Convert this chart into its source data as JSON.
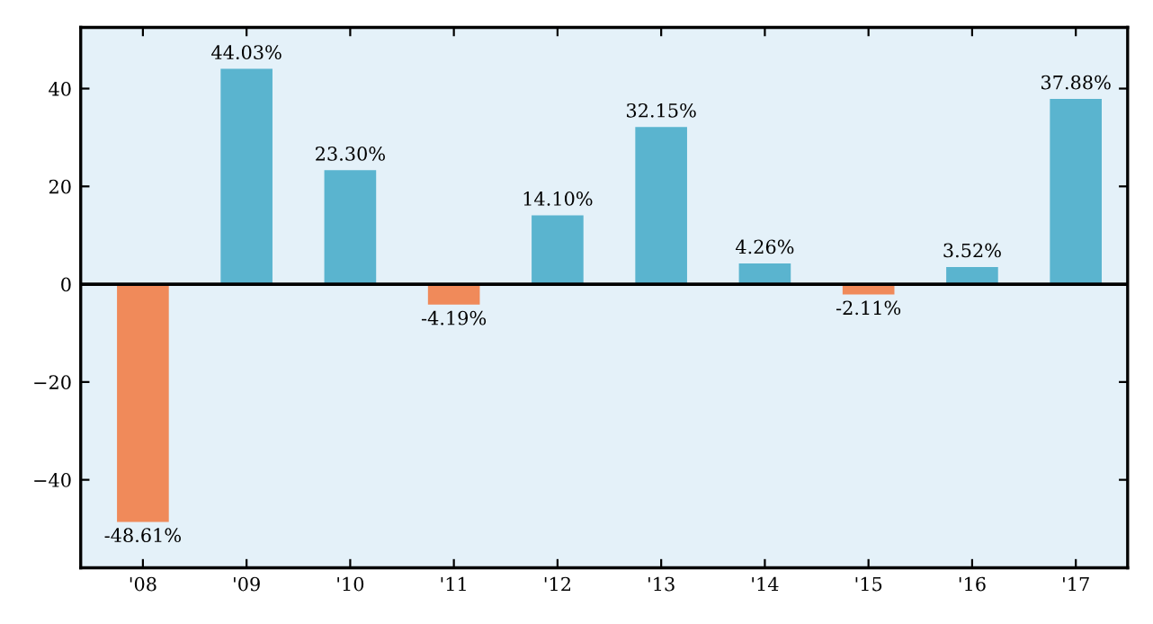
{
  "chart_data": {
    "type": "bar",
    "categories": [
      "'08",
      "'09",
      "'10",
      "'11",
      "'12",
      "'13",
      "'14",
      "'15",
      "'16",
      "'17"
    ],
    "values": [
      -48.61,
      44.03,
      23.3,
      -4.19,
      14.1,
      32.15,
      4.26,
      -2.11,
      3.52,
      37.88
    ],
    "colors": [
      "#f08a5a",
      "#5ab4cf",
      "#5ab4cf",
      "#f08a5a",
      "#5ab4cf",
      "#5ab4cf",
      "#5ab4cf",
      "#f08a5a",
      "#5ab4cf",
      "#5ab4cf"
    ],
    "value_labels": [
      "-48.61%",
      "44.03%",
      "23.30%",
      "-4.19%",
      "14.10%",
      "32.15%",
      "4.26%",
      "-2.11%",
      "3.52%",
      "37.88%"
    ],
    "ylim": [
      -58,
      52.5
    ],
    "yticks": [
      {
        "value": -40,
        "label": "−40"
      },
      {
        "value": -20,
        "label": "−20"
      },
      0,
      20,
      40
    ],
    "ref_lines": [
      {
        "axis": "y",
        "value": 0,
        "color": "#000000"
      }
    ],
    "grid": false
  }
}
